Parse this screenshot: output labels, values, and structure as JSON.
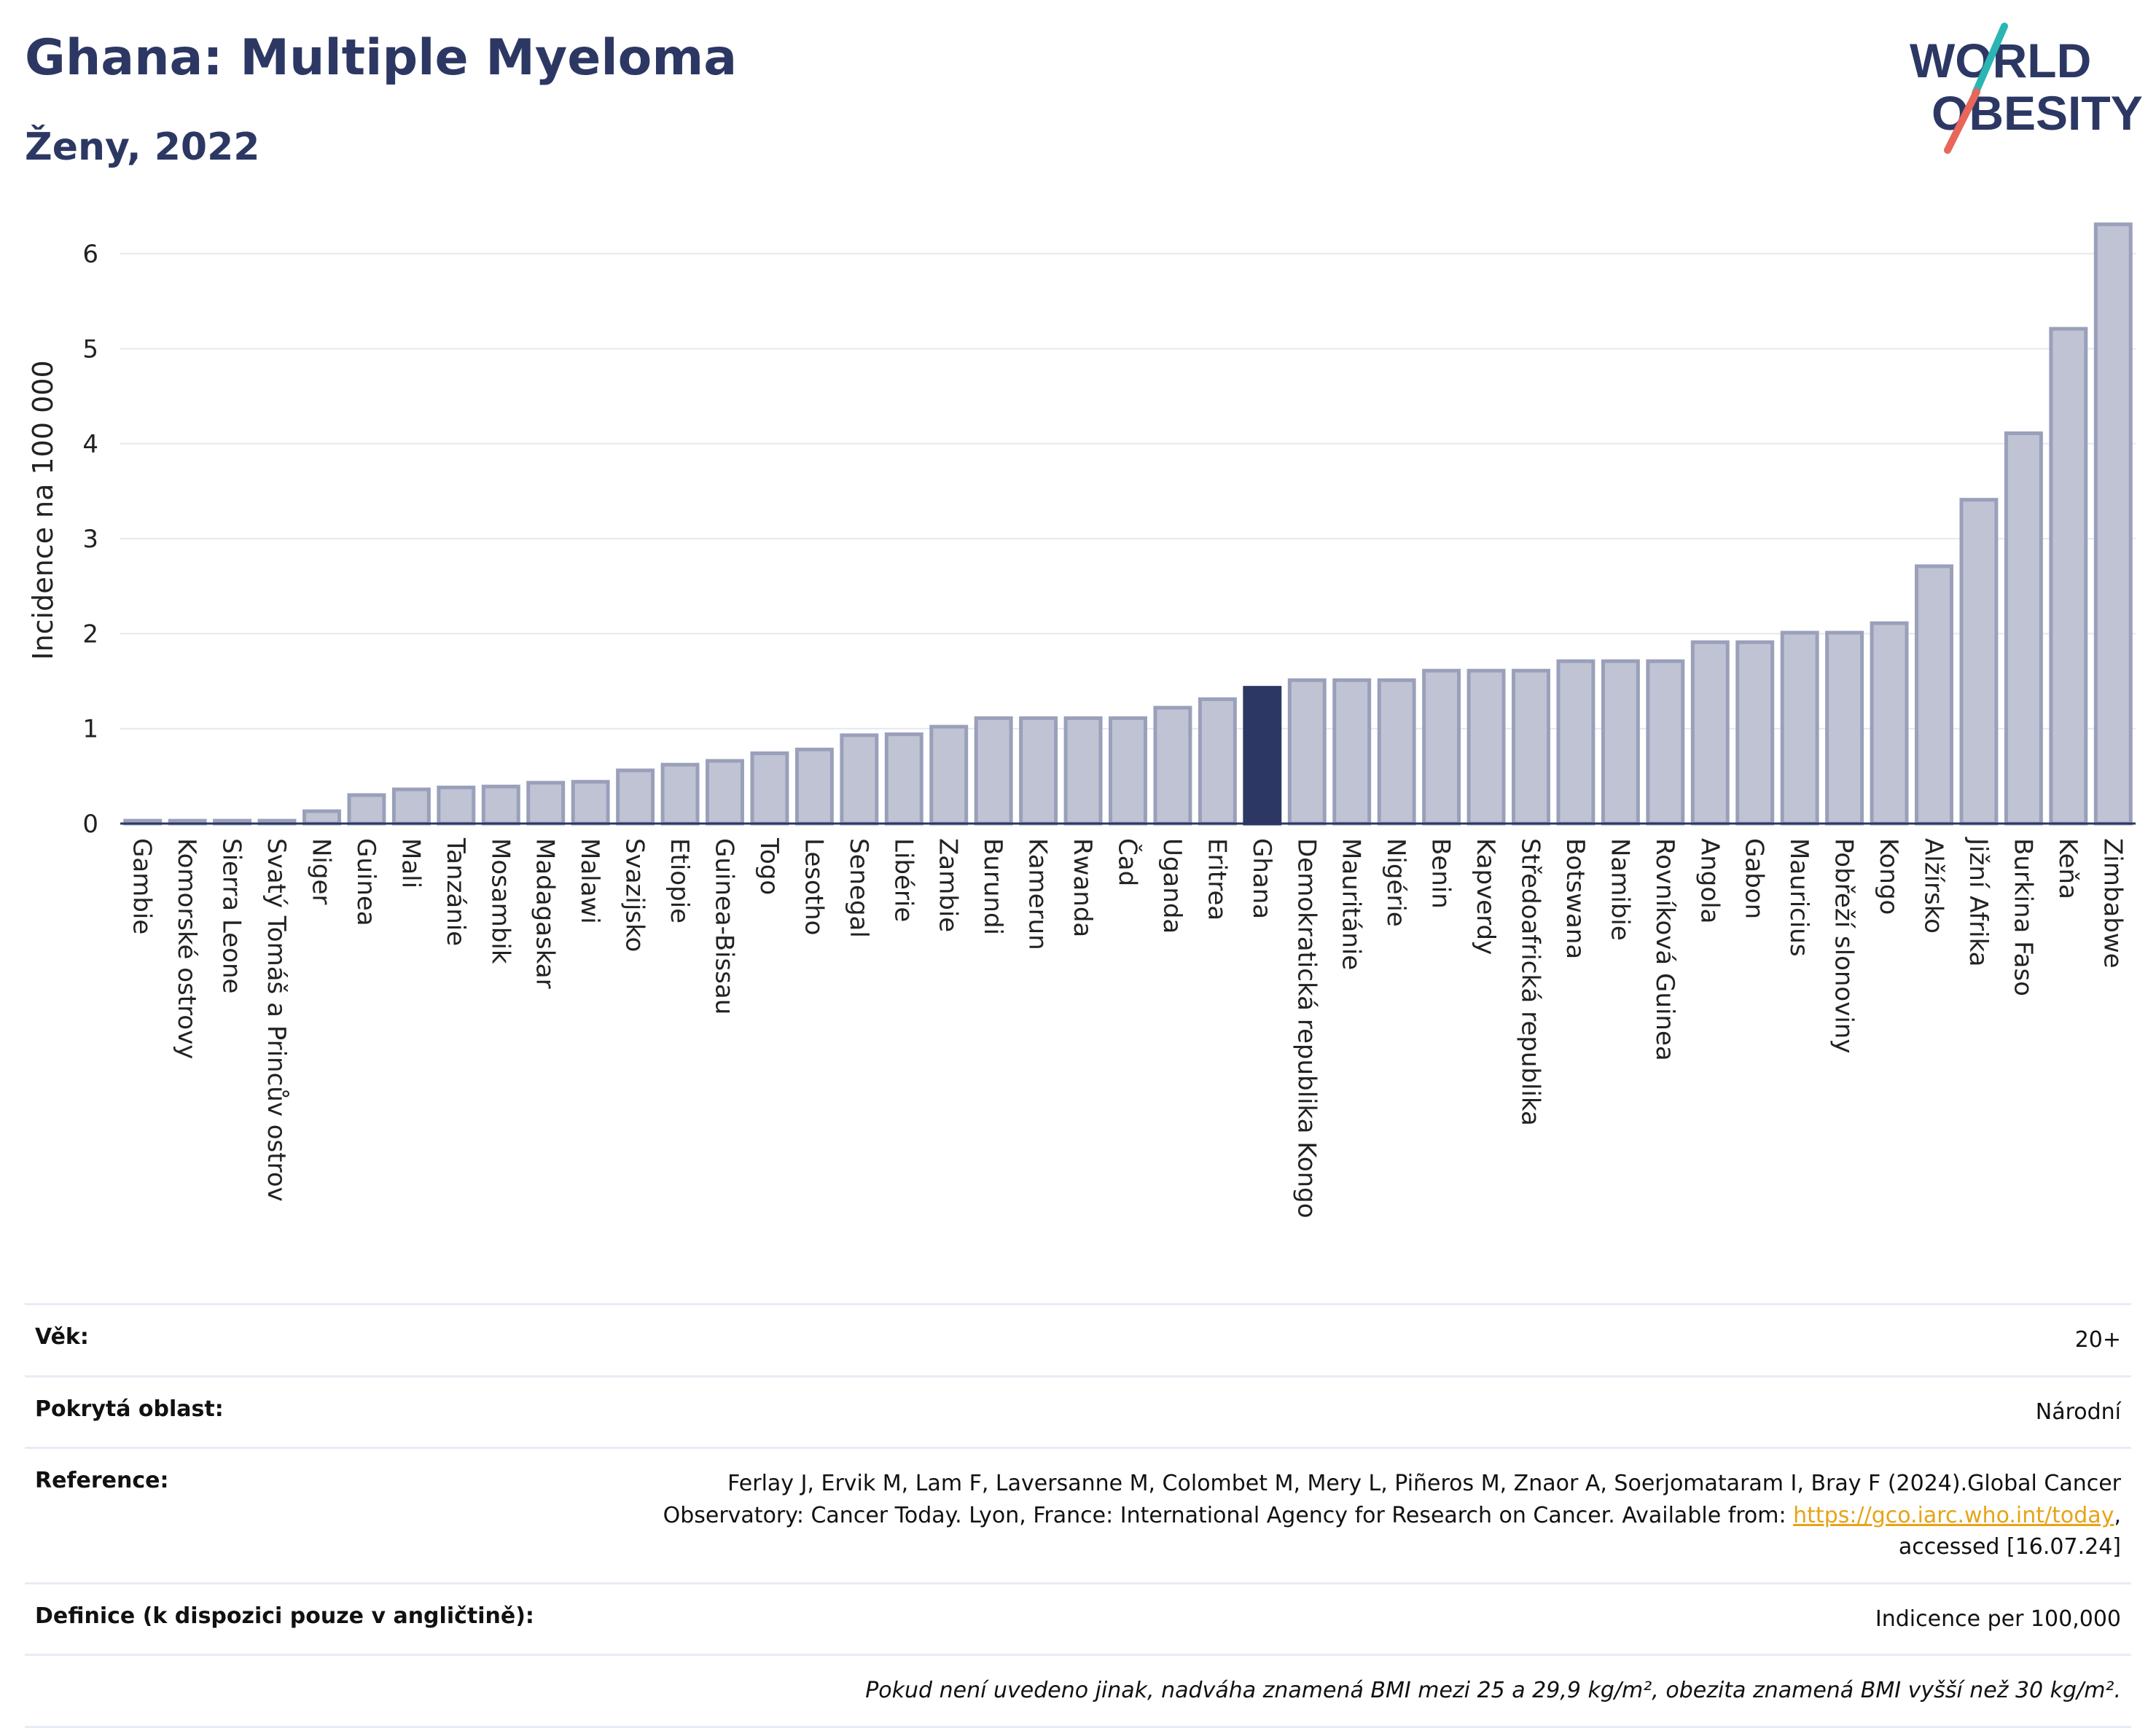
{
  "header": {
    "title": "Ghana: Multiple Myeloma",
    "subtitle": "Ženy, 2022",
    "logo_line1": "WORLD",
    "logo_line2": "OBESITY"
  },
  "colors": {
    "title": "#2c3863",
    "bar_default": "#bfc3d3",
    "bar_default_stroke": "#9aa0ba",
    "bar_highlight": "#2c3863",
    "logo_teal": "#2bb6b4",
    "logo_coral": "#e8675a",
    "link": "#e8a317"
  },
  "chart_data": {
    "type": "bar",
    "ylabel": "Incidence na 100 000",
    "ylim": [
      0,
      6.6
    ],
    "yticks": [
      0,
      1,
      2,
      3,
      4,
      5,
      6
    ],
    "grid": true,
    "highlight": "Ghana",
    "categories": [
      "Gambie",
      "Komorské ostrovy",
      "Sierra Leone",
      "Svatý Tomáš a Princův ostrov",
      "Niger",
      "Guinea",
      "Mali",
      "Tanzánie",
      "Mosambik",
      "Madagaskar",
      "Malawi",
      "Svazijsko",
      "Etiopie",
      "Guinea-Bissau",
      "Togo",
      "Lesotho",
      "Senegal",
      "Libérie",
      "Zambie",
      "Burundi",
      "Kamerun",
      "Rwanda",
      "Čad",
      "Uganda",
      "Eritrea",
      "Ghana",
      "Demokratická republika Kongo",
      "Mauritánie",
      "Nigérie",
      "Benin",
      "Kapverdy",
      "Středoafrická republika",
      "Botswana",
      "Namibie",
      "Rovníková Guinea",
      "Angola",
      "Gabon",
      "Mauricius",
      "Pobřeží slonoviny",
      "Kongo",
      "Alžírsko",
      "Jižní Afrika",
      "Burkina Faso",
      "Keňa",
      "Zimbabwe"
    ],
    "values": [
      0.03,
      0.03,
      0.03,
      0.03,
      0.13,
      0.3,
      0.36,
      0.38,
      0.39,
      0.43,
      0.44,
      0.56,
      0.62,
      0.66,
      0.74,
      0.78,
      0.93,
      0.94,
      1.02,
      1.11,
      1.11,
      1.11,
      1.11,
      1.22,
      1.31,
      1.43,
      1.51,
      1.51,
      1.51,
      1.61,
      1.61,
      1.61,
      1.71,
      1.71,
      1.71,
      1.91,
      1.91,
      2.01,
      2.01,
      2.11,
      2.71,
      3.41,
      4.11,
      5.21,
      6.31
    ]
  },
  "meta": {
    "age_label": "Věk:",
    "age_value": "20+",
    "coverage_label": "Pokrytá oblast:",
    "coverage_value": "Národní",
    "reference_label": "Reference:",
    "reference_text_1": "Ferlay J, Ervik M, Lam F, Laversanne M, Colombet M, Mery L, Piñeros M, Znaor A, Soerjomataram I, Bray F (2024).Global Cancer Observatory: Cancer Today. Lyon, France: International Agency for Research on Cancer. Available from: ",
    "reference_link": "https://gco.iarc.who.int/today",
    "reference_text_2": ", accessed [16.07.24]",
    "definition_label": "Definice (k dispozici pouze v angličtině):",
    "definition_value": "Indicence per 100,000",
    "note": "Pokud není uvedeno jinak, nadváha znamená BMI mezi 25 a 29,9 kg/m², obezita znamená BMI vyšší než 30 kg/m²."
  }
}
